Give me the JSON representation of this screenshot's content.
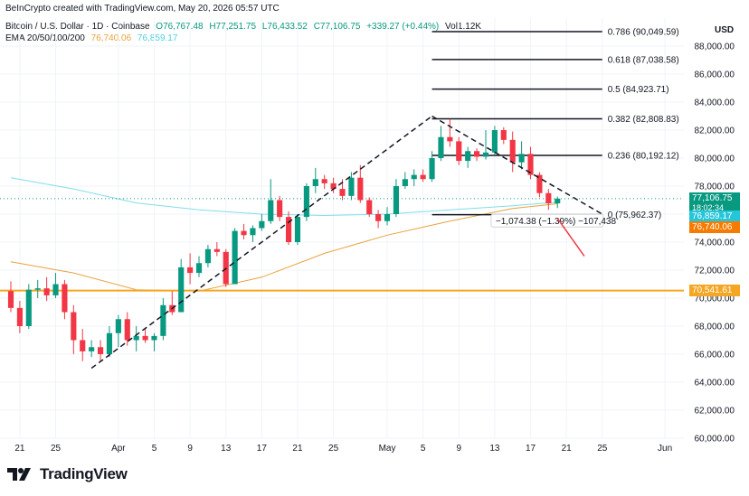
{
  "header": {
    "credit": "BeInCrypto created with TradingView.com, May 20, 2026 05:57 UTC",
    "symbol": "Bitcoin / U.S. Dollar · 1D · Coinbase",
    "open": "O76,767.48",
    "high": "H77,251.75",
    "low": "L76,433.52",
    "close": "C77,106.75",
    "change": "+339.27 (+0.44%)",
    "volume": "Vol1.12K",
    "ema_label": "EMA 20/50/100/200",
    "ema_val1": "76,740.06",
    "ema_val2": "76,859.17"
  },
  "footer": {
    "brand": "TradingView"
  },
  "colors": {
    "up": "#089981",
    "down": "#f23645",
    "ema_orange": "#e8a33d",
    "ema_cyan": "#80deea",
    "support": "#f5a623",
    "fib": "#131722"
  },
  "chart_data": {
    "type": "candlestick",
    "currency": "USD",
    "ylim": [
      60000,
      90000
    ],
    "y_ticks": [
      60000,
      62000,
      64000,
      66000,
      68000,
      70000,
      72000,
      74000,
      76000,
      78000,
      80000,
      82000,
      84000,
      86000,
      88000
    ],
    "y_tick_labels": [
      "60,000.00",
      "62,000.00",
      "64,000.00",
      "66,000.00",
      "68,000.00",
      "70,000.00",
      "72,000.00",
      "74,000.00",
      "76,000.00",
      "78,000.00",
      "80,000.00",
      "82,000.00",
      "84,000.00",
      "86,000.00",
      "88,000.00"
    ],
    "x_range": [
      "2026-03-20",
      "2026-06-02"
    ],
    "x_ticks": [
      {
        "date": "2026-03-21",
        "label": "21"
      },
      {
        "date": "2026-03-25",
        "label": "25"
      },
      {
        "date": "2026-04-01",
        "label": "Apr"
      },
      {
        "date": "2026-04-05",
        "label": "5"
      },
      {
        "date": "2026-04-09",
        "label": "9"
      },
      {
        "date": "2026-04-13",
        "label": "13"
      },
      {
        "date": "2026-04-17",
        "label": "17"
      },
      {
        "date": "2026-04-21",
        "label": "21"
      },
      {
        "date": "2026-04-25",
        "label": "25"
      },
      {
        "date": "2026-05-01",
        "label": "May"
      },
      {
        "date": "2026-05-05",
        "label": "5"
      },
      {
        "date": "2026-05-09",
        "label": "9"
      },
      {
        "date": "2026-05-13",
        "label": "13"
      },
      {
        "date": "2026-05-17",
        "label": "17"
      },
      {
        "date": "2026-05-21",
        "label": "21"
      },
      {
        "date": "2026-05-25",
        "label": "25"
      },
      {
        "date": "2026-06-01",
        "label": "Jun"
      }
    ],
    "candles": [
      {
        "date": "2026-03-20",
        "o": 70500,
        "h": 71200,
        "l": 69000,
        "c": 69300
      },
      {
        "date": "2026-03-21",
        "o": 69300,
        "h": 69800,
        "l": 67500,
        "c": 68000
      },
      {
        "date": "2026-03-22",
        "o": 68000,
        "h": 71000,
        "l": 67800,
        "c": 70600
      },
      {
        "date": "2026-03-23",
        "o": 70600,
        "h": 71300,
        "l": 70000,
        "c": 70700
      },
      {
        "date": "2026-03-24",
        "o": 70700,
        "h": 71500,
        "l": 69800,
        "c": 70200
      },
      {
        "date": "2026-03-25",
        "o": 70200,
        "h": 71800,
        "l": 70000,
        "c": 71000
      },
      {
        "date": "2026-03-26",
        "o": 71000,
        "h": 71300,
        "l": 68500,
        "c": 69000
      },
      {
        "date": "2026-03-27",
        "o": 69000,
        "h": 69500,
        "l": 66000,
        "c": 67000
      },
      {
        "date": "2026-03-28",
        "o": 67000,
        "h": 67800,
        "l": 65500,
        "c": 66200
      },
      {
        "date": "2026-03-29",
        "o": 66200,
        "h": 67000,
        "l": 65800,
        "c": 66500
      },
      {
        "date": "2026-03-30",
        "o": 66500,
        "h": 67000,
        "l": 65500,
        "c": 66000
      },
      {
        "date": "2026-03-31",
        "o": 66000,
        "h": 68000,
        "l": 65800,
        "c": 67500
      },
      {
        "date": "2026-04-01",
        "o": 67500,
        "h": 68800,
        "l": 66500,
        "c": 68500
      },
      {
        "date": "2026-04-02",
        "o": 68500,
        "h": 69000,
        "l": 66600,
        "c": 67000
      },
      {
        "date": "2026-04-03",
        "o": 67000,
        "h": 68000,
        "l": 66200,
        "c": 67300
      },
      {
        "date": "2026-04-04",
        "o": 67300,
        "h": 67800,
        "l": 66800,
        "c": 67000
      },
      {
        "date": "2026-04-05",
        "o": 67000,
        "h": 67500,
        "l": 66200,
        "c": 67300
      },
      {
        "date": "2026-04-06",
        "o": 67300,
        "h": 70000,
        "l": 67000,
        "c": 69500
      },
      {
        "date": "2026-04-07",
        "o": 69500,
        "h": 70500,
        "l": 68800,
        "c": 69000
      },
      {
        "date": "2026-04-08",
        "o": 69000,
        "h": 72800,
        "l": 69000,
        "c": 72200
      },
      {
        "date": "2026-04-09",
        "o": 72200,
        "h": 73200,
        "l": 71000,
        "c": 71800
      },
      {
        "date": "2026-04-10",
        "o": 71800,
        "h": 73000,
        "l": 71500,
        "c": 72500
      },
      {
        "date": "2026-04-11",
        "o": 72500,
        "h": 73800,
        "l": 72200,
        "c": 73500
      },
      {
        "date": "2026-04-12",
        "o": 73500,
        "h": 74000,
        "l": 73000,
        "c": 73300
      },
      {
        "date": "2026-04-13",
        "o": 73300,
        "h": 73500,
        "l": 70800,
        "c": 71000
      },
      {
        "date": "2026-04-14",
        "o": 71000,
        "h": 75000,
        "l": 71000,
        "c": 74800
      },
      {
        "date": "2026-04-15",
        "o": 74800,
        "h": 75300,
        "l": 74200,
        "c": 74500
      },
      {
        "date": "2026-04-16",
        "o": 74500,
        "h": 75200,
        "l": 74000,
        "c": 75000
      },
      {
        "date": "2026-04-17",
        "o": 75000,
        "h": 76000,
        "l": 74800,
        "c": 75500
      },
      {
        "date": "2026-04-18",
        "o": 75500,
        "h": 78500,
        "l": 75300,
        "c": 77000
      },
      {
        "date": "2026-04-19",
        "o": 77000,
        "h": 77300,
        "l": 75500,
        "c": 75800
      },
      {
        "date": "2026-04-20",
        "o": 75800,
        "h": 76200,
        "l": 73800,
        "c": 74000
      },
      {
        "date": "2026-04-21",
        "o": 74000,
        "h": 76000,
        "l": 73800,
        "c": 75800
      },
      {
        "date": "2026-04-22",
        "o": 75800,
        "h": 78200,
        "l": 75500,
        "c": 78000
      },
      {
        "date": "2026-04-23",
        "o": 78000,
        "h": 79300,
        "l": 77500,
        "c": 78500
      },
      {
        "date": "2026-04-24",
        "o": 78500,
        "h": 78800,
        "l": 77800,
        "c": 78200
      },
      {
        "date": "2026-04-25",
        "o": 78200,
        "h": 78600,
        "l": 77500,
        "c": 77800
      },
      {
        "date": "2026-04-26",
        "o": 77800,
        "h": 78500,
        "l": 77000,
        "c": 77300
      },
      {
        "date": "2026-04-27",
        "o": 77300,
        "h": 79000,
        "l": 77000,
        "c": 78600
      },
      {
        "date": "2026-04-28",
        "o": 78600,
        "h": 79500,
        "l": 76800,
        "c": 77000
      },
      {
        "date": "2026-04-29",
        "o": 77000,
        "h": 77200,
        "l": 75800,
        "c": 76000
      },
      {
        "date": "2026-04-30",
        "o": 76000,
        "h": 76300,
        "l": 75000,
        "c": 75500
      },
      {
        "date": "2026-05-01",
        "o": 75500,
        "h": 76500,
        "l": 75200,
        "c": 76000
      },
      {
        "date": "2026-05-02",
        "o": 76000,
        "h": 78500,
        "l": 75800,
        "c": 78000
      },
      {
        "date": "2026-05-03",
        "o": 78000,
        "h": 79000,
        "l": 77800,
        "c": 78500
      },
      {
        "date": "2026-05-04",
        "o": 78500,
        "h": 79200,
        "l": 78000,
        "c": 78800
      },
      {
        "date": "2026-05-05",
        "o": 78800,
        "h": 79200,
        "l": 78300,
        "c": 78500
      },
      {
        "date": "2026-05-06",
        "o": 78500,
        "h": 80500,
        "l": 78300,
        "c": 80000
      },
      {
        "date": "2026-05-07",
        "o": 80000,
        "h": 82300,
        "l": 79800,
        "c": 81500
      },
      {
        "date": "2026-05-08",
        "o": 81500,
        "h": 82800,
        "l": 80800,
        "c": 81200
      },
      {
        "date": "2026-05-09",
        "o": 81200,
        "h": 81500,
        "l": 79500,
        "c": 79800
      },
      {
        "date": "2026-05-10",
        "o": 79800,
        "h": 80800,
        "l": 79300,
        "c": 80500
      },
      {
        "date": "2026-05-11",
        "o": 80500,
        "h": 80700,
        "l": 79800,
        "c": 80100
      },
      {
        "date": "2026-05-12",
        "o": 80100,
        "h": 82000,
        "l": 79900,
        "c": 80400
      },
      {
        "date": "2026-05-13",
        "o": 80400,
        "h": 82300,
        "l": 80200,
        "c": 82000
      },
      {
        "date": "2026-05-14",
        "o": 82000,
        "h": 82200,
        "l": 81000,
        "c": 81300
      },
      {
        "date": "2026-05-15",
        "o": 81300,
        "h": 81900,
        "l": 79000,
        "c": 79700
      },
      {
        "date": "2026-05-16",
        "o": 79700,
        "h": 81200,
        "l": 79200,
        "c": 80300
      },
      {
        "date": "2026-05-17",
        "o": 80300,
        "h": 80800,
        "l": 78500,
        "c": 78800
      },
      {
        "date": "2026-05-18",
        "o": 78800,
        "h": 79000,
        "l": 77200,
        "c": 77500
      },
      {
        "date": "2026-05-19",
        "o": 77500,
        "h": 77800,
        "l": 76300,
        "c": 76767
      },
      {
        "date": "2026-05-20",
        "o": 76767,
        "h": 77252,
        "l": 76434,
        "c": 77107
      }
    ],
    "emas": [
      {
        "name": "EMA 20",
        "color": "#e8a33d",
        "values": [
          [
            "2026-03-20",
            72600
          ],
          [
            "2026-03-27",
            71800
          ],
          [
            "2026-04-03",
            70600
          ],
          [
            "2026-04-10",
            70500
          ],
          [
            "2026-04-17",
            71500
          ],
          [
            "2026-04-24",
            73200
          ],
          [
            "2026-05-01",
            74500
          ],
          [
            "2026-05-08",
            75500
          ],
          [
            "2026-05-15",
            76400
          ],
          [
            "2026-05-20",
            76740
          ]
        ]
      },
      {
        "name": "EMA 50",
        "color": "#80deea",
        "values": [
          [
            "2026-03-20",
            78600
          ],
          [
            "2026-03-27",
            77800
          ],
          [
            "2026-04-03",
            76800
          ],
          [
            "2026-04-10",
            76300
          ],
          [
            "2026-04-17",
            76000
          ],
          [
            "2026-04-24",
            75900
          ],
          [
            "2026-05-01",
            76000
          ],
          [
            "2026-05-08",
            76300
          ],
          [
            "2026-05-15",
            76600
          ],
          [
            "2026-05-20",
            76859
          ]
        ]
      }
    ],
    "fib_levels": [
      {
        "ratio": "0.786",
        "price": 90049.59,
        "label": "0.786 (90,049.59)"
      },
      {
        "ratio": "0.618",
        "price": 87038.58,
        "label": "0.618 (87,038.58)"
      },
      {
        "ratio": "0.5",
        "price": 84923.71,
        "label": "0.5 (84,923.71)"
      },
      {
        "ratio": "0.382",
        "price": 82808.83,
        "label": "0.382 (82,808.83)"
      },
      {
        "ratio": "0.236",
        "price": 80192.12,
        "label": "0.236 (80,192.12)"
      },
      {
        "ratio": "0",
        "price": 75962.37,
        "label": "0 (75,962.37)"
      }
    ],
    "fib_start": "2026-05-06",
    "fib_end": "2026-05-25",
    "support_level": 70541.61,
    "price_tags": [
      {
        "label": "77,106.75",
        "sub": "18:02:34",
        "price": 77106.75,
        "color": "#089981"
      },
      {
        "label": "76,859.17",
        "price": 76859.17,
        "color": "#26c6da"
      },
      {
        "label": "76,740.06",
        "price": 76740.06,
        "color": "#f57c00"
      },
      {
        "label": "70,541.61",
        "price": 70541.61,
        "color": "#f5a623"
      }
    ],
    "trendlines": [
      {
        "from": [
          "2026-03-29",
          65000
        ],
        "to": [
          "2026-05-06",
          83000
        ],
        "style": "dashed"
      },
      {
        "from": [
          "2026-05-06",
          83000
        ],
        "to": [
          "2026-05-25",
          76000
        ],
        "style": "dashed"
      }
    ],
    "annotation": {
      "text": "−1,074.38 (−1.39%) −107,438",
      "date": "2026-05-13",
      "price": 75400
    },
    "arrow": {
      "from": [
        "2026-05-20",
        75700
      ],
      "to": [
        "2026-05-23",
        73000
      ],
      "color": "#f23645"
    }
  }
}
